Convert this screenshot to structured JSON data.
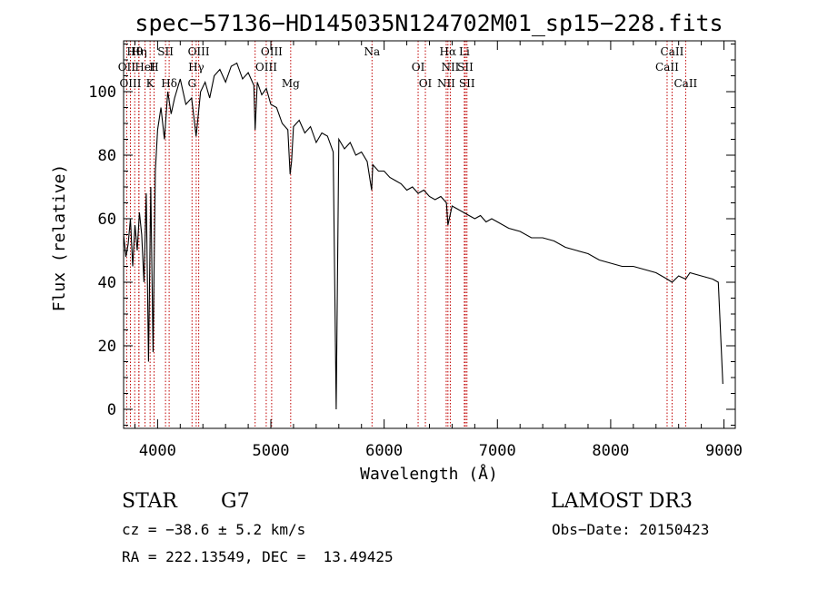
{
  "chart_data": {
    "type": "line",
    "title": "spec−57136−HD145035N124702M01_sp15−228.fits",
    "xlabel": "Wavelength (Å)",
    "ylabel": "Flux (relative)",
    "xlim": [
      3700,
      9100
    ],
    "ylim": [
      -6,
      116
    ],
    "x_ticks": [
      4000,
      5000,
      6000,
      7000,
      8000,
      9000
    ],
    "x_tick_labels": [
      "4000",
      "5000",
      "6000",
      "7000",
      "8000",
      "9000"
    ],
    "y_ticks": [
      0,
      20,
      40,
      60,
      80,
      100
    ],
    "y_tick_labels": [
      "0",
      "20",
      "40",
      "60",
      "80",
      "100"
    ],
    "spectrum": {
      "name": "flux",
      "x": [
        3700,
        3720,
        3740,
        3760,
        3780,
        3800,
        3820,
        3840,
        3860,
        3880,
        3900,
        3920,
        3940,
        3960,
        3980,
        4000,
        4030,
        4060,
        4090,
        4120,
        4150,
        4200,
        4250,
        4300,
        4340,
        4380,
        4420,
        4460,
        4500,
        4550,
        4600,
        4650,
        4700,
        4750,
        4800,
        4850,
        4861,
        4880,
        4920,
        4960,
        5000,
        5050,
        5100,
        5150,
        5170,
        5183,
        5200,
        5250,
        5300,
        5350,
        5400,
        5450,
        5500,
        5550,
        5577,
        5600,
        5650,
        5700,
        5750,
        5800,
        5850,
        5890,
        5900,
        5950,
        6000,
        6050,
        6100,
        6150,
        6200,
        6250,
        6300,
        6350,
        6400,
        6450,
        6500,
        6550,
        6563,
        6600,
        6650,
        6700,
        6750,
        6800,
        6850,
        6900,
        6950,
        7000,
        7100,
        7200,
        7300,
        7400,
        7500,
        7600,
        7700,
        7800,
        7900,
        8000,
        8100,
        8200,
        8300,
        8400,
        8498,
        8542,
        8600,
        8662,
        8700,
        8800,
        8900,
        8950,
        8990
      ],
      "y": [
        55,
        48,
        52,
        60,
        45,
        58,
        50,
        62,
        55,
        40,
        68,
        15,
        70,
        18,
        75,
        88,
        95,
        85,
        100,
        93,
        98,
        104,
        96,
        98,
        86,
        100,
        103,
        98,
        105,
        107,
        103,
        108,
        109,
        104,
        106,
        102,
        88,
        103,
        99,
        101,
        96,
        95,
        90,
        88,
        74,
        78,
        89,
        91,
        87,
        89,
        84,
        87,
        86,
        81,
        0,
        85,
        82,
        84,
        80,
        81,
        78,
        69,
        77,
        75,
        75,
        73,
        72,
        71,
        69,
        70,
        68,
        69,
        67,
        66,
        67,
        65,
        58,
        64,
        63,
        62,
        61,
        60,
        61,
        59,
        60,
        59,
        57,
        56,
        54,
        54,
        53,
        51,
        50,
        49,
        47,
        46,
        45,
        45,
        44,
        43,
        41,
        40,
        42,
        41,
        43,
        42,
        41,
        40,
        8
      ]
    },
    "spectral_lines": [
      {
        "label": "Hθ",
        "wavelength": 3798
      },
      {
        "label": "OII",
        "wavelength": 3727
      },
      {
        "label": "OIII",
        "wavelength": 3760
      },
      {
        "label": "Hη",
        "wavelength": 3835
      },
      {
        "label": "HeI",
        "wavelength": 3889
      },
      {
        "label": "K",
        "wavelength": 3934
      },
      {
        "label": "SII",
        "wavelength": 4070
      },
      {
        "label": "H",
        "wavelength": 3969
      },
      {
        "label": "Hδ",
        "wavelength": 4102
      },
      {
        "label": "OIII",
        "wavelength": 4363
      },
      {
        "label": "Hγ",
        "wavelength": 4341
      },
      {
        "label": "G",
        "wavelength": 4304
      },
      {
        "label": "OIII",
        "wavelength": 5007
      },
      {
        "label": "OIII",
        "wavelength": 4959
      },
      {
        "label": "Mg",
        "wavelength": 5175
      },
      {
        "label": "Na",
        "wavelength": 5893
      },
      {
        "label": "OI",
        "wavelength": 6300
      },
      {
        "label": "OI",
        "wavelength": 6364
      },
      {
        "label": "Hα",
        "wavelength": 6563
      },
      {
        "label": "SII",
        "wavelength": 6717
      },
      {
        "label": "NII",
        "wavelength": 6548
      },
      {
        "label": "Li",
        "wavelength": 6708
      },
      {
        "label": "NII",
        "wavelength": 6584
      },
      {
        "label": "SII",
        "wavelength": 6731
      },
      {
        "label": "CaII",
        "wavelength": 8542
      },
      {
        "label": "CaII",
        "wavelength": 8498
      },
      {
        "label": "CaII",
        "wavelength": 8662
      }
    ],
    "extra_line_markers": [
      3835,
      4861
    ]
  },
  "info": {
    "object_type": "STAR",
    "subclass": "G7",
    "survey": "LAMOST DR3",
    "velocity": "cz = −38.6 ± 5.2 km/s",
    "obs_date": "Obs−Date: 20150423",
    "coords": "RA = 222.13549, DEC =  13.49425"
  },
  "colors": {
    "line_marker": "#c00000",
    "spectrum": "#000000",
    "axes": "#000000"
  }
}
